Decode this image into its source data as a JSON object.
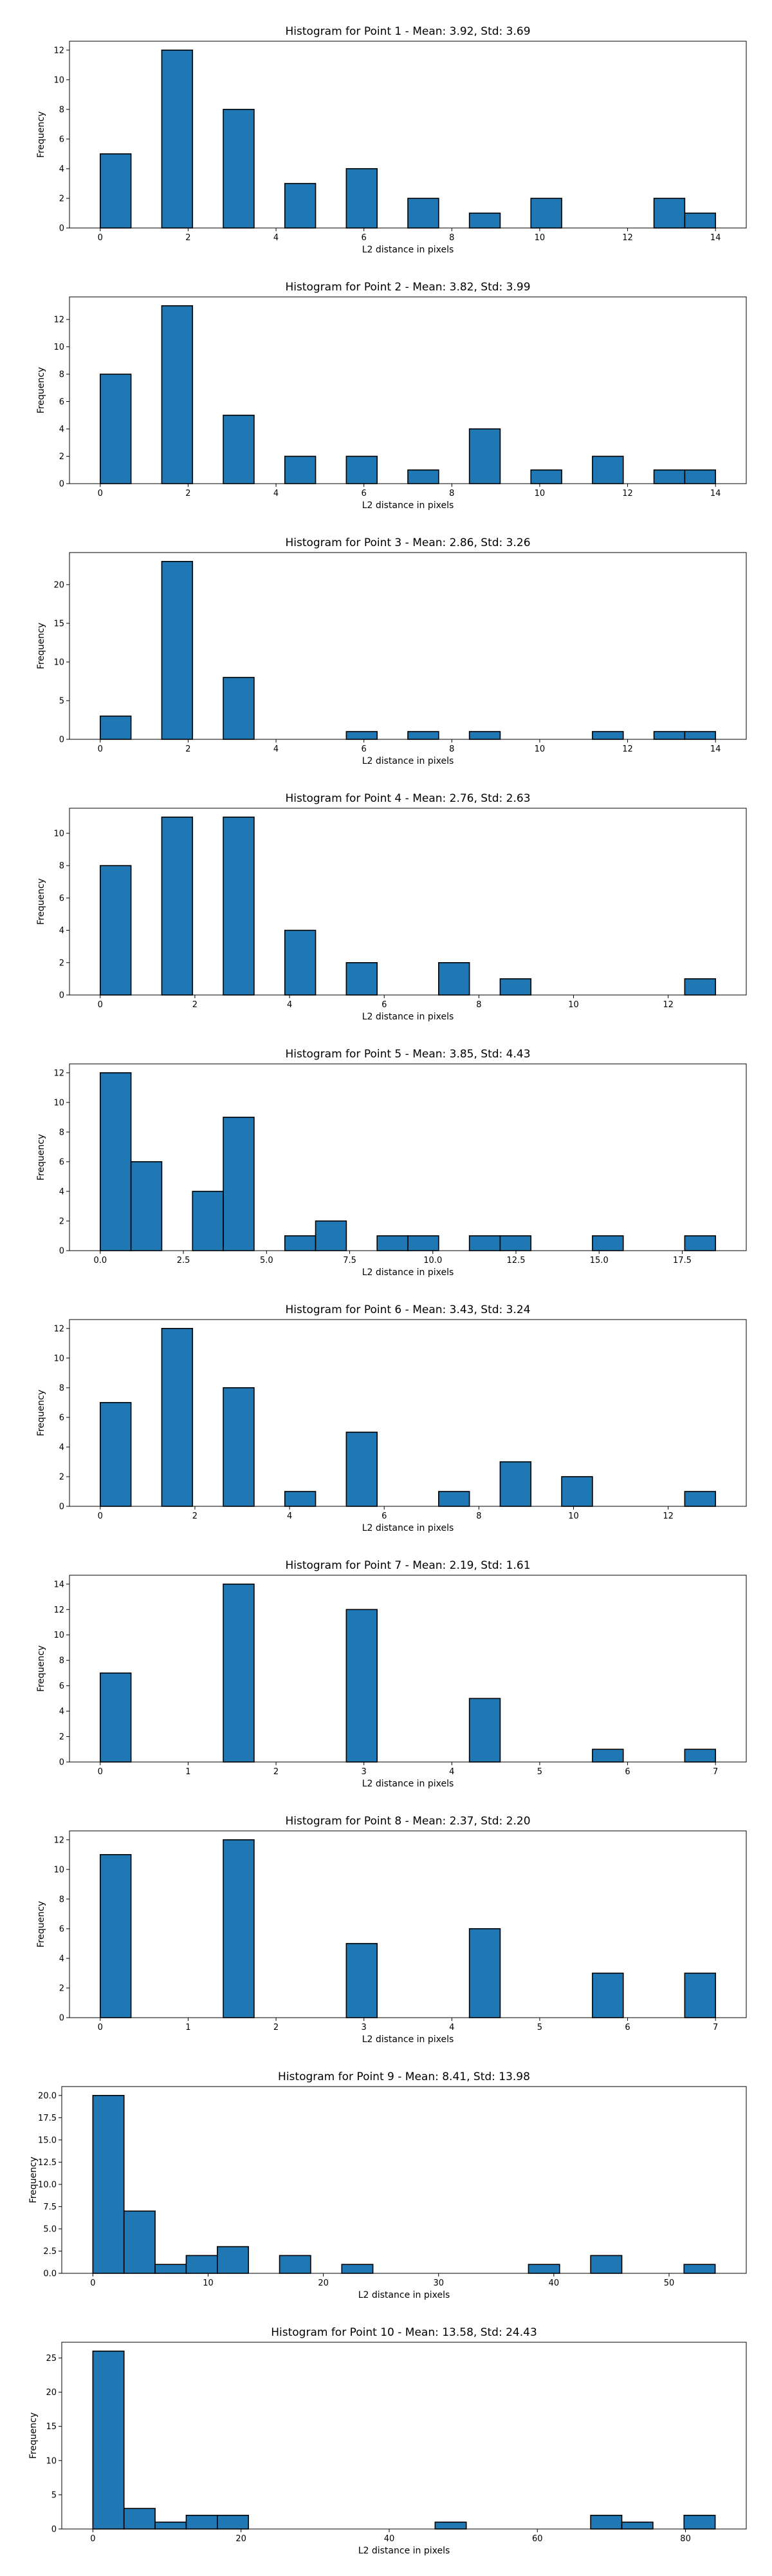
{
  "chart_data": [
    {
      "type": "bar",
      "title": "Histogram for Point 1 - Mean: 3.92, Std: 3.69",
      "xlabel": "L2 distance in pixels",
      "ylabel": "Frequency",
      "bin_start": 0,
      "bin_width": 0.7,
      "counts": [
        5,
        0,
        12,
        0,
        8,
        0,
        3,
        0,
        4,
        0,
        2,
        0,
        1,
        0,
        2,
        0,
        0,
        0,
        2,
        1
      ],
      "xlim": [
        -0.7,
        14.7
      ],
      "ylim": [
        0,
        12.6
      ],
      "xticks": [
        0,
        2,
        4,
        6,
        8,
        10,
        12,
        14
      ],
      "xtick_labels": [
        "0",
        "2",
        "4",
        "6",
        "8",
        "10",
        "12",
        "14"
      ],
      "yticks": [
        0,
        2,
        4,
        6,
        8,
        10,
        12
      ],
      "ytick_labels": [
        "0",
        "2",
        "4",
        "6",
        "8",
        "10",
        "12"
      ]
    },
    {
      "type": "bar",
      "title": "Histogram for Point 2 - Mean: 3.82, Std: 3.99",
      "xlabel": "L2 distance in pixels",
      "ylabel": "Frequency",
      "bin_start": 0,
      "bin_width": 0.7,
      "counts": [
        8,
        0,
        13,
        0,
        5,
        0,
        2,
        0,
        2,
        0,
        1,
        0,
        4,
        0,
        1,
        0,
        2,
        0,
        1,
        1
      ],
      "xlim": [
        -0.7,
        14.7
      ],
      "ylim": [
        0,
        13.65
      ],
      "xticks": [
        0,
        2,
        4,
        6,
        8,
        10,
        12,
        14
      ],
      "xtick_labels": [
        "0",
        "2",
        "4",
        "6",
        "8",
        "10",
        "12",
        "14"
      ],
      "yticks": [
        0,
        2,
        4,
        6,
        8,
        10,
        12
      ],
      "ytick_labels": [
        "0",
        "2",
        "4",
        "6",
        "8",
        "10",
        "12"
      ]
    },
    {
      "type": "bar",
      "title": "Histogram for Point 3 - Mean: 2.86, Std: 3.26",
      "xlabel": "L2 distance in pixels",
      "ylabel": "Frequency",
      "bin_start": 0,
      "bin_width": 0.7,
      "counts": [
        3,
        0,
        23,
        0,
        8,
        0,
        0,
        0,
        1,
        0,
        1,
        0,
        1,
        0,
        0,
        0,
        1,
        0,
        1,
        1
      ],
      "xlim": [
        -0.7,
        14.7
      ],
      "ylim": [
        0,
        24.15
      ],
      "xticks": [
        0,
        2,
        4,
        6,
        8,
        10,
        12,
        14
      ],
      "xtick_labels": [
        "0",
        "2",
        "4",
        "6",
        "8",
        "10",
        "12",
        "14"
      ],
      "yticks": [
        0,
        5,
        10,
        15,
        20
      ],
      "ytick_labels": [
        "0",
        "5",
        "10",
        "15",
        "20"
      ]
    },
    {
      "type": "bar",
      "title": "Histogram for Point 4 - Mean: 2.76, Std: 2.63",
      "xlabel": "L2 distance in pixels",
      "ylabel": "Frequency",
      "bin_start": 0,
      "bin_width": 0.65,
      "counts": [
        8,
        0,
        11,
        0,
        11,
        0,
        4,
        0,
        2,
        0,
        0,
        2,
        0,
        1,
        0,
        0,
        0,
        0,
        0,
        1
      ],
      "xlim": [
        -0.65,
        13.65
      ],
      "ylim": [
        0,
        11.55
      ],
      "xticks": [
        0,
        2,
        4,
        6,
        8,
        10,
        12
      ],
      "xtick_labels": [
        "0",
        "2",
        "4",
        "6",
        "8",
        "10",
        "12"
      ],
      "yticks": [
        0,
        2,
        4,
        6,
        8,
        10
      ],
      "ytick_labels": [
        "0",
        "2",
        "4",
        "6",
        "8",
        "10"
      ]
    },
    {
      "type": "bar",
      "title": "Histogram for Point 5 - Mean: 3.85, Std: 4.43",
      "xlabel": "L2 distance in pixels",
      "ylabel": "Frequency",
      "bin_start": 0,
      "bin_width": 0.925,
      "counts": [
        12,
        6,
        0,
        4,
        9,
        0,
        1,
        2,
        0,
        1,
        1,
        0,
        1,
        1,
        0,
        0,
        1,
        0,
        0,
        1
      ],
      "xlim": [
        -0.925,
        19.425
      ],
      "ylim": [
        0,
        12.6
      ],
      "xticks": [
        0,
        2.5,
        5,
        7.5,
        10,
        12.5,
        15,
        17.5
      ],
      "xtick_labels": [
        "0.0",
        "2.5",
        "5.0",
        "7.5",
        "10.0",
        "12.5",
        "15.0",
        "17.5"
      ],
      "yticks": [
        0,
        2,
        4,
        6,
        8,
        10,
        12
      ],
      "ytick_labels": [
        "0",
        "2",
        "4",
        "6",
        "8",
        "10",
        "12"
      ]
    },
    {
      "type": "bar",
      "title": "Histogram for Point 6 - Mean: 3.43, Std: 3.24",
      "xlabel": "L2 distance in pixels",
      "ylabel": "Frequency",
      "bin_start": 0,
      "bin_width": 0.65,
      "counts": [
        7,
        0,
        12,
        0,
        8,
        0,
        1,
        0,
        5,
        0,
        0,
        1,
        0,
        3,
        0,
        2,
        0,
        0,
        0,
        1
      ],
      "xlim": [
        -0.65,
        13.65
      ],
      "ylim": [
        0,
        12.6
      ],
      "xticks": [
        0,
        2,
        4,
        6,
        8,
        10,
        12
      ],
      "xtick_labels": [
        "0",
        "2",
        "4",
        "6",
        "8",
        "10",
        "12"
      ],
      "yticks": [
        0,
        2,
        4,
        6,
        8,
        10,
        12
      ],
      "ytick_labels": [
        "0",
        "2",
        "4",
        "6",
        "8",
        "10",
        "12"
      ]
    },
    {
      "type": "bar",
      "title": "Histogram for Point 7 - Mean: 2.19, Std: 1.61",
      "xlabel": "L2 distance in pixels",
      "ylabel": "Frequency",
      "bin_start": 0,
      "bin_width": 0.35,
      "counts": [
        7,
        0,
        0,
        0,
        14,
        0,
        0,
        0,
        12,
        0,
        0,
        0,
        5,
        0,
        0,
        0,
        1,
        0,
        0,
        1
      ],
      "xlim": [
        -0.35,
        7.35
      ],
      "ylim": [
        0,
        14.7
      ],
      "xticks": [
        0,
        1,
        2,
        3,
        4,
        5,
        6,
        7
      ],
      "xtick_labels": [
        "0",
        "1",
        "2",
        "3",
        "4",
        "5",
        "6",
        "7"
      ],
      "yticks": [
        0,
        2,
        4,
        6,
        8,
        10,
        12,
        14
      ],
      "ytick_labels": [
        "0",
        "2",
        "4",
        "6",
        "8",
        "10",
        "12",
        "14"
      ]
    },
    {
      "type": "bar",
      "title": "Histogram for Point 8 - Mean: 2.37, Std: 2.20",
      "xlabel": "L2 distance in pixels",
      "ylabel": "Frequency",
      "bin_start": 0,
      "bin_width": 0.35,
      "counts": [
        11,
        0,
        0,
        0,
        12,
        0,
        0,
        0,
        5,
        0,
        0,
        0,
        6,
        0,
        0,
        0,
        3,
        0,
        0,
        3
      ],
      "xlim": [
        -0.35,
        7.35
      ],
      "ylim": [
        0,
        12.6
      ],
      "xticks": [
        0,
        1,
        2,
        3,
        4,
        5,
        6,
        7
      ],
      "xtick_labels": [
        "0",
        "1",
        "2",
        "3",
        "4",
        "5",
        "6",
        "7"
      ],
      "yticks": [
        0,
        2,
        4,
        6,
        8,
        10,
        12
      ],
      "ytick_labels": [
        "0",
        "2",
        "4",
        "6",
        "8",
        "10",
        "12"
      ]
    },
    {
      "type": "bar",
      "title": "Histogram for Point 9 - Mean: 8.41, Std: 13.98",
      "xlabel": "L2 distance in pixels",
      "ylabel": "Frequency",
      "bin_start": 0,
      "bin_width": 2.7,
      "counts": [
        20,
        7,
        1,
        2,
        3,
        0,
        2,
        0,
        1,
        0,
        0,
        0,
        0,
        0,
        1,
        0,
        2,
        0,
        0,
        1
      ],
      "xlim": [
        -2.7,
        56.7
      ],
      "ylim": [
        0,
        21
      ],
      "xticks": [
        0,
        10,
        20,
        30,
        40,
        50
      ],
      "xtick_labels": [
        "0",
        "10",
        "20",
        "30",
        "40",
        "50"
      ],
      "yticks": [
        0,
        2.5,
        5,
        7.5,
        10,
        12.5,
        15,
        17.5,
        20
      ],
      "ytick_labels": [
        "0.0",
        "2.5",
        "5.0",
        "7.5",
        "10.0",
        "12.5",
        "15.0",
        "17.5",
        "20.0"
      ]
    },
    {
      "type": "bar",
      "title": "Histogram for Point 10 - Mean: 13.58, Std: 24.43",
      "xlabel": "L2 distance in pixels",
      "ylabel": "Frequency",
      "bin_start": 0,
      "bin_width": 4.2,
      "counts": [
        26,
        3,
        1,
        2,
        2,
        0,
        0,
        0,
        0,
        0,
        0,
        0,
        0,
        0,
        0,
        0,
        0,
        0,
        0,
        0
      ],
      "extra_bars": [
        {
          "x": 46.2,
          "count": 1
        },
        {
          "x": 67.2,
          "count": 2
        },
        {
          "x": 71.4,
          "count": 1
        },
        {
          "x": 79.8,
          "count": 2
        }
      ],
      "xlim": [
        -4.2,
        88.2
      ],
      "ylim": [
        0,
        27.3
      ],
      "xticks": [
        0,
        20,
        40,
        60,
        80
      ],
      "xtick_labels": [
        "0",
        "20",
        "40",
        "60",
        "80"
      ],
      "yticks": [
        0,
        5,
        10,
        15,
        20,
        25
      ],
      "ytick_labels": [
        "0",
        "5",
        "10",
        "15",
        "20",
        "25"
      ]
    }
  ],
  "style": {
    "bar_color": "#1f77b4",
    "edge_color": "#000000"
  }
}
